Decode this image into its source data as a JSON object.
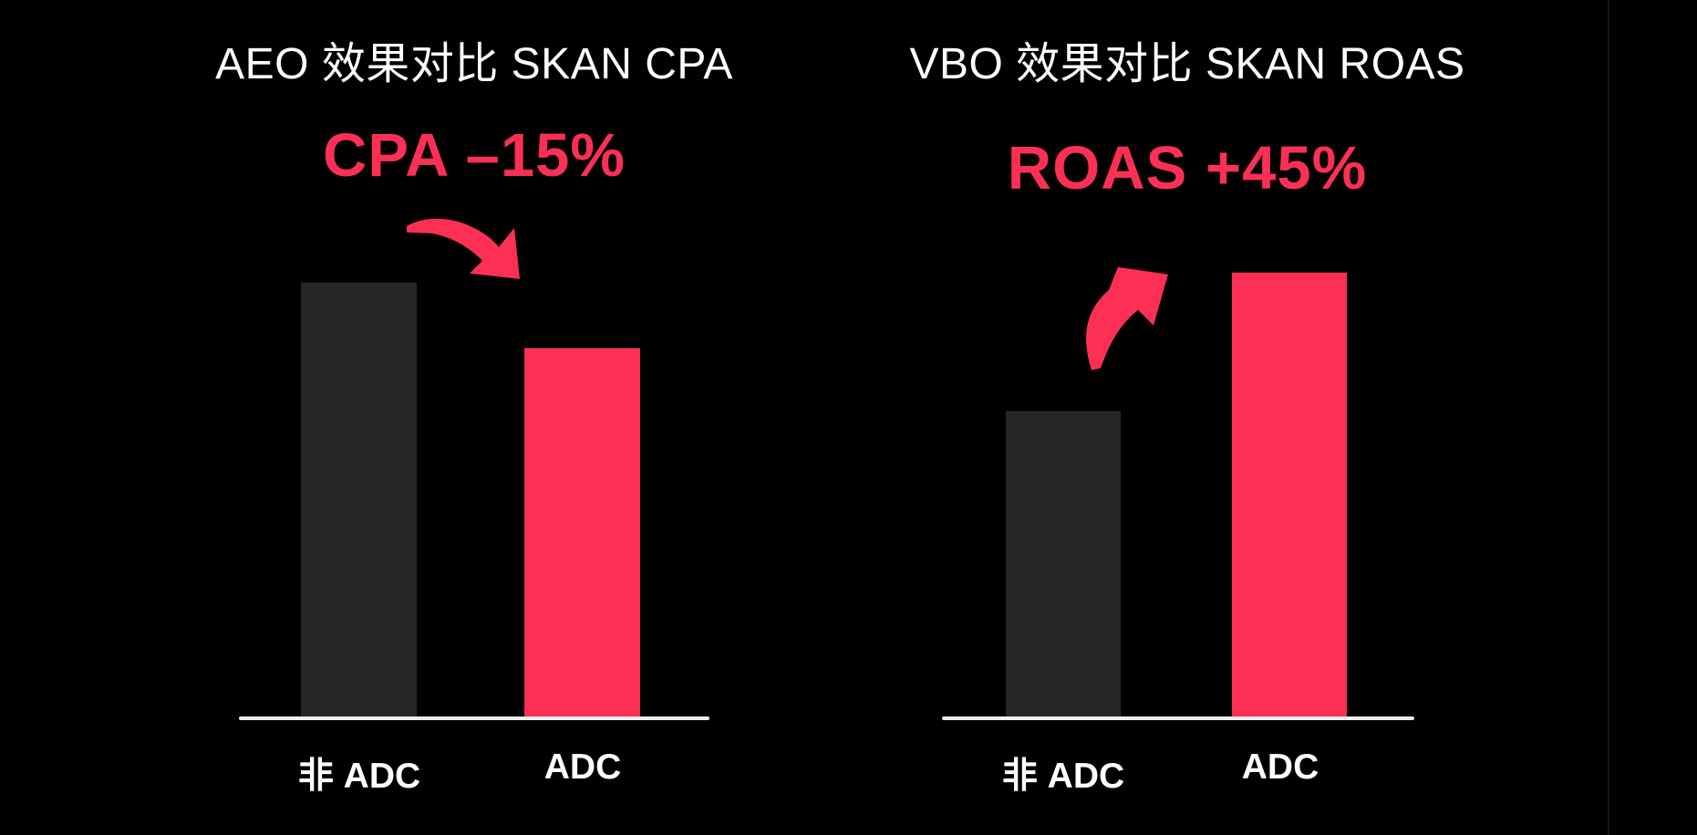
{
  "page": {
    "background_color": "#000000",
    "divider_line_color": "#151515"
  },
  "colors": {
    "accent_pink": "#FC2F55",
    "bar_dark_gray": "#262626",
    "axis_line_white": "#EFEFEF",
    "title_text": "#FFFFFF"
  },
  "chart_data": [
    {
      "type": "bar",
      "title": "AEO 效果对比 SKAN CPA",
      "stat_label": "CPA –15%",
      "stat_color": "#FC2F55",
      "annotation_arrow": "curved-arrow-down-right",
      "categories": [
        "非 ADC",
        "ADC"
      ],
      "values": [
        100,
        85
      ],
      "values_basis": "relative index estimated from bar heights; 非 ADC = 100, ADC bar ≈15% shorter matching CPA –15%",
      "bar_colors": [
        "#262626",
        "#FC2F55"
      ],
      "xlabel": "",
      "ylabel": "",
      "y_axis_visible": false,
      "gridlines": false,
      "legend": "none",
      "x_baseline_visible": true
    },
    {
      "type": "bar",
      "title": "VBO 效果对比 SKAN ROAS",
      "stat_label": "ROAS +45%",
      "stat_color": "#FC2F55",
      "annotation_arrow": "curved-arrow-up-right",
      "categories": [
        "非 ADC",
        "ADC"
      ],
      "values": [
        100,
        145
      ],
      "values_basis": "relative index estimated from bar heights; 非 ADC = 100, ADC bar ≈45% taller matching ROAS +45%",
      "bar_colors": [
        "#262626",
        "#FC2F55"
      ],
      "xlabel": "",
      "ylabel": "",
      "y_axis_visible": false,
      "gridlines": false,
      "legend": "none",
      "x_baseline_visible": true
    }
  ]
}
